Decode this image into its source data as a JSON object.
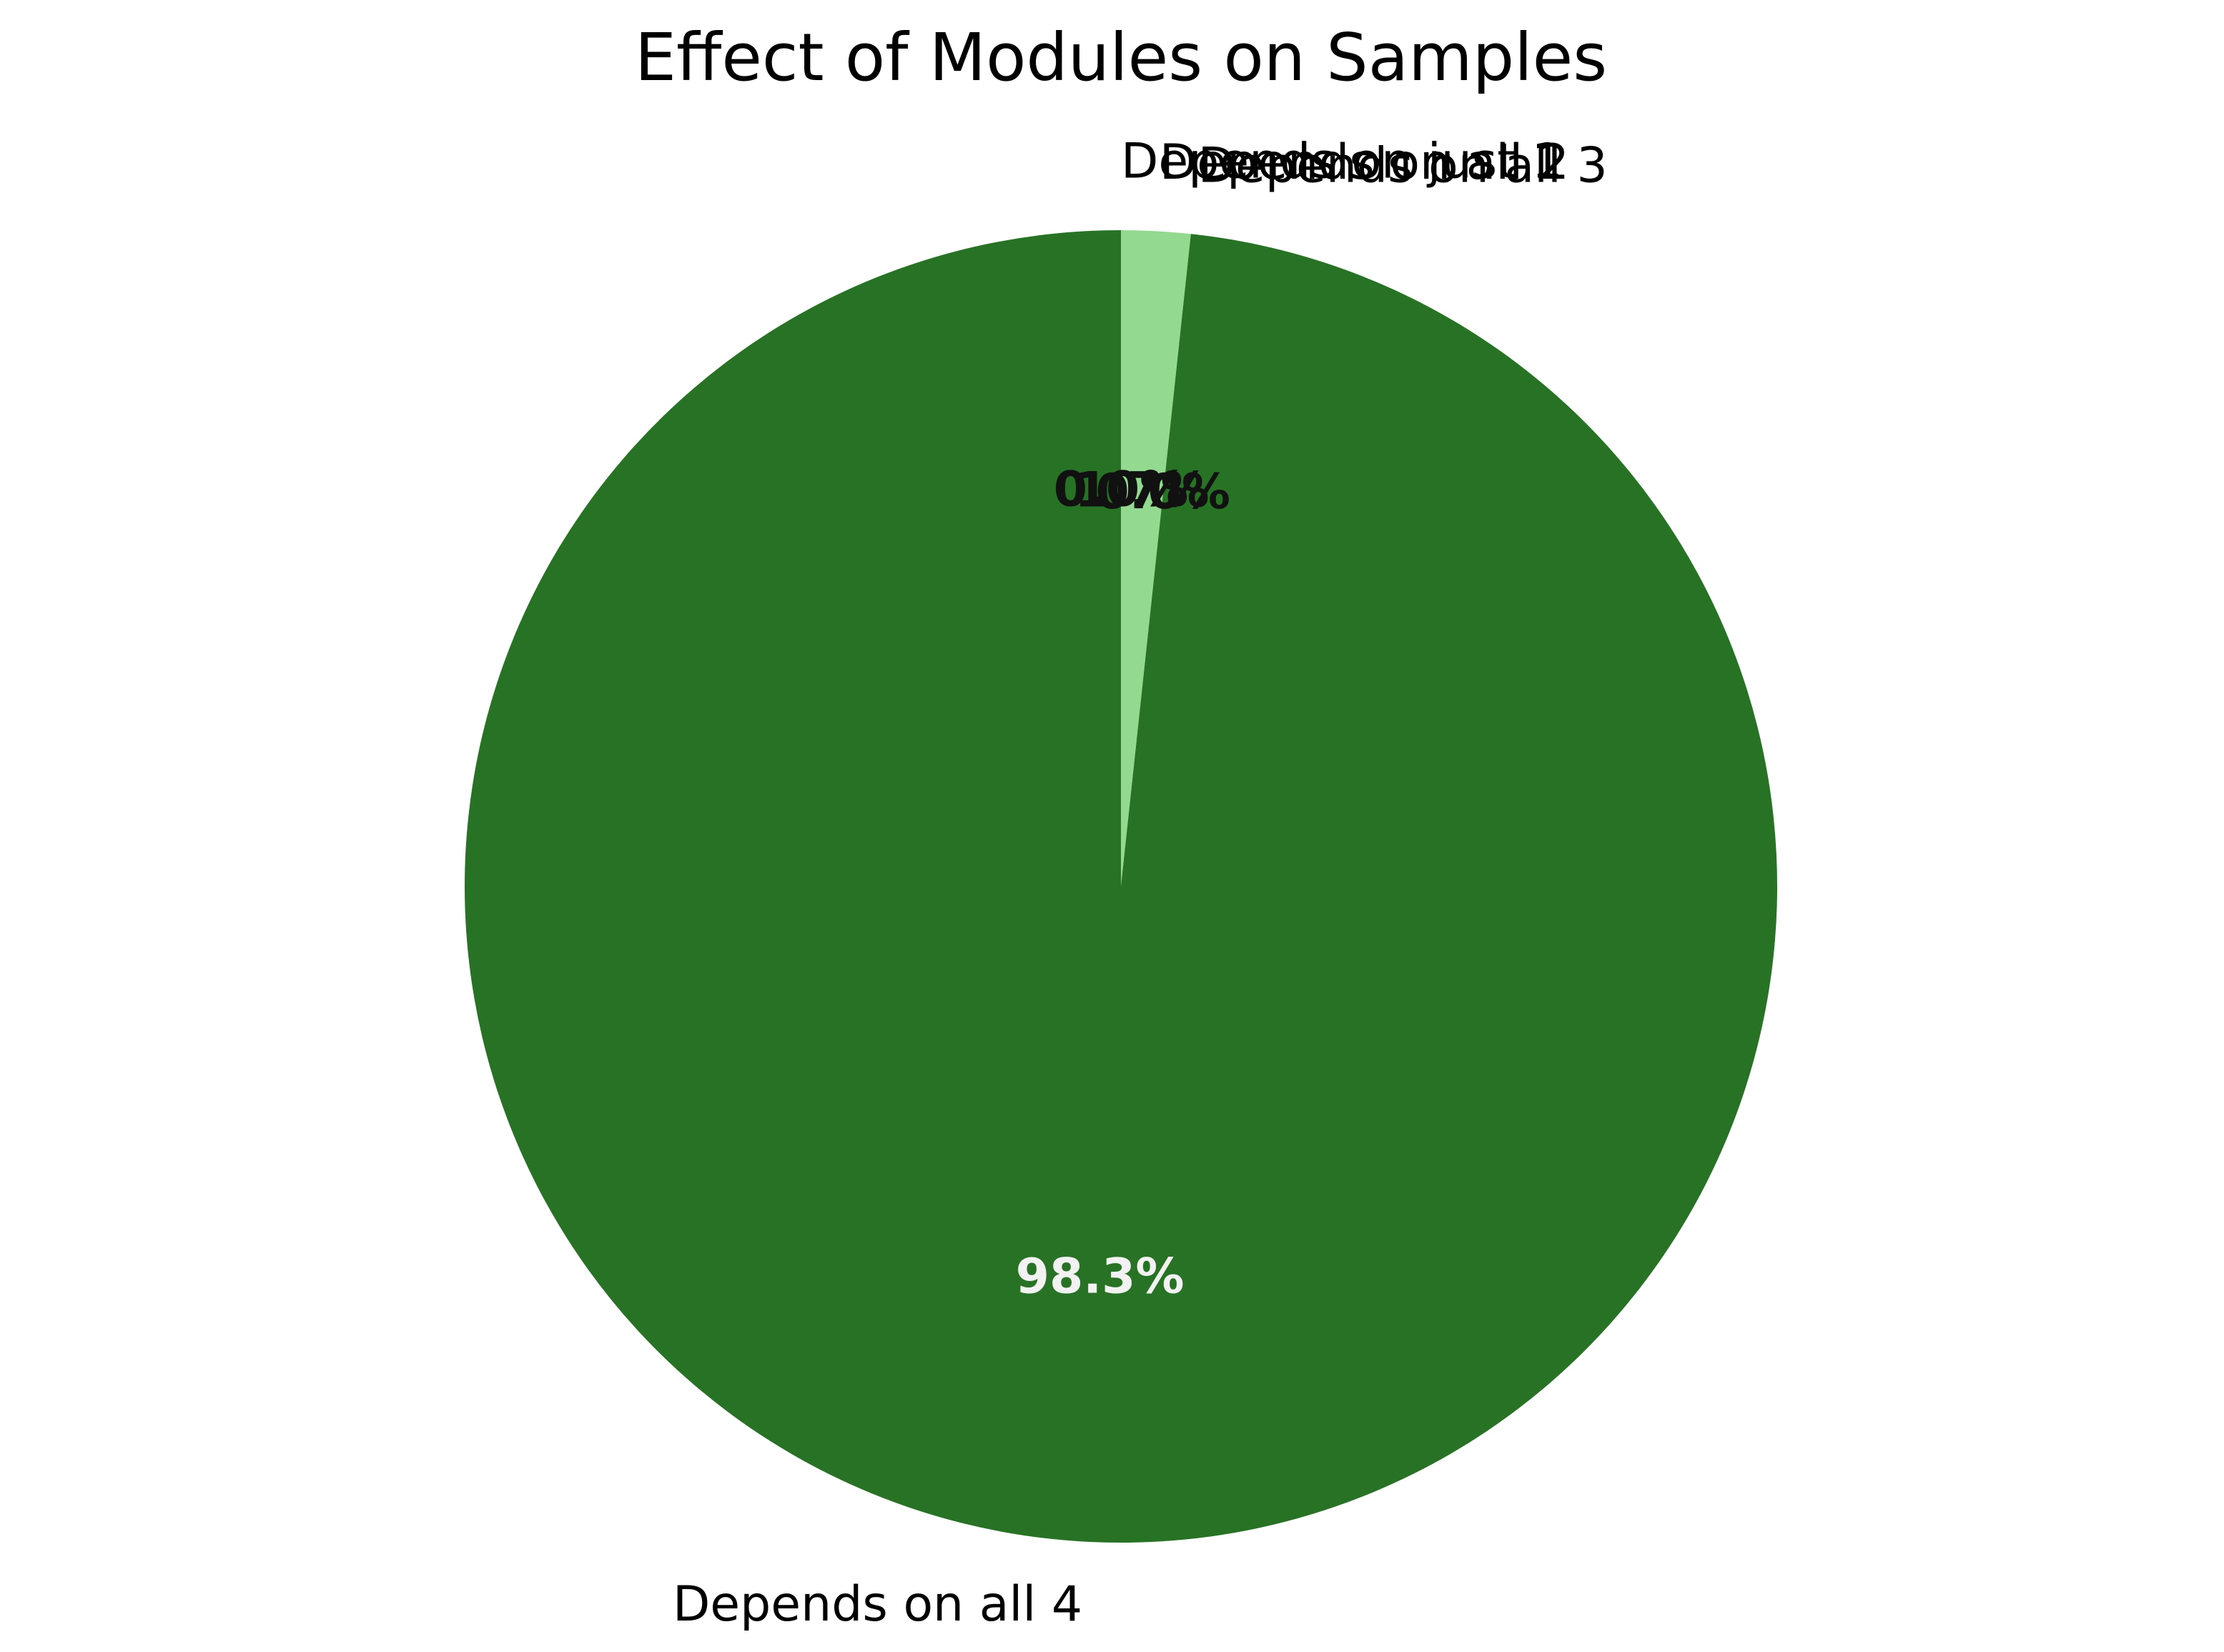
{
  "chart_data": {
    "type": "pie",
    "title": "Effect of Modules on Samples",
    "start_angle": 90,
    "direction": "clockwise",
    "slices": [
      {
        "label": "Depends on just 1",
        "value": 0.0,
        "pct_label": "0.0%",
        "color": "#e5f5e0",
        "pct_color": "#111111"
      },
      {
        "label": "Depends on all 2",
        "value": 1.7,
        "pct_label": "1.7%",
        "color": "#93d98f",
        "pct_color": "#111111"
      },
      {
        "label": "Depends on all 3",
        "value": 0.0,
        "pct_label": "0.0%",
        "color": "#4caf50",
        "pct_color": "#111111"
      },
      {
        "label": "Depends on all 4",
        "value": 98.3,
        "pct_label": "98.3%",
        "color": "#287226",
        "pct_color": "#f2f2f2"
      }
    ]
  }
}
